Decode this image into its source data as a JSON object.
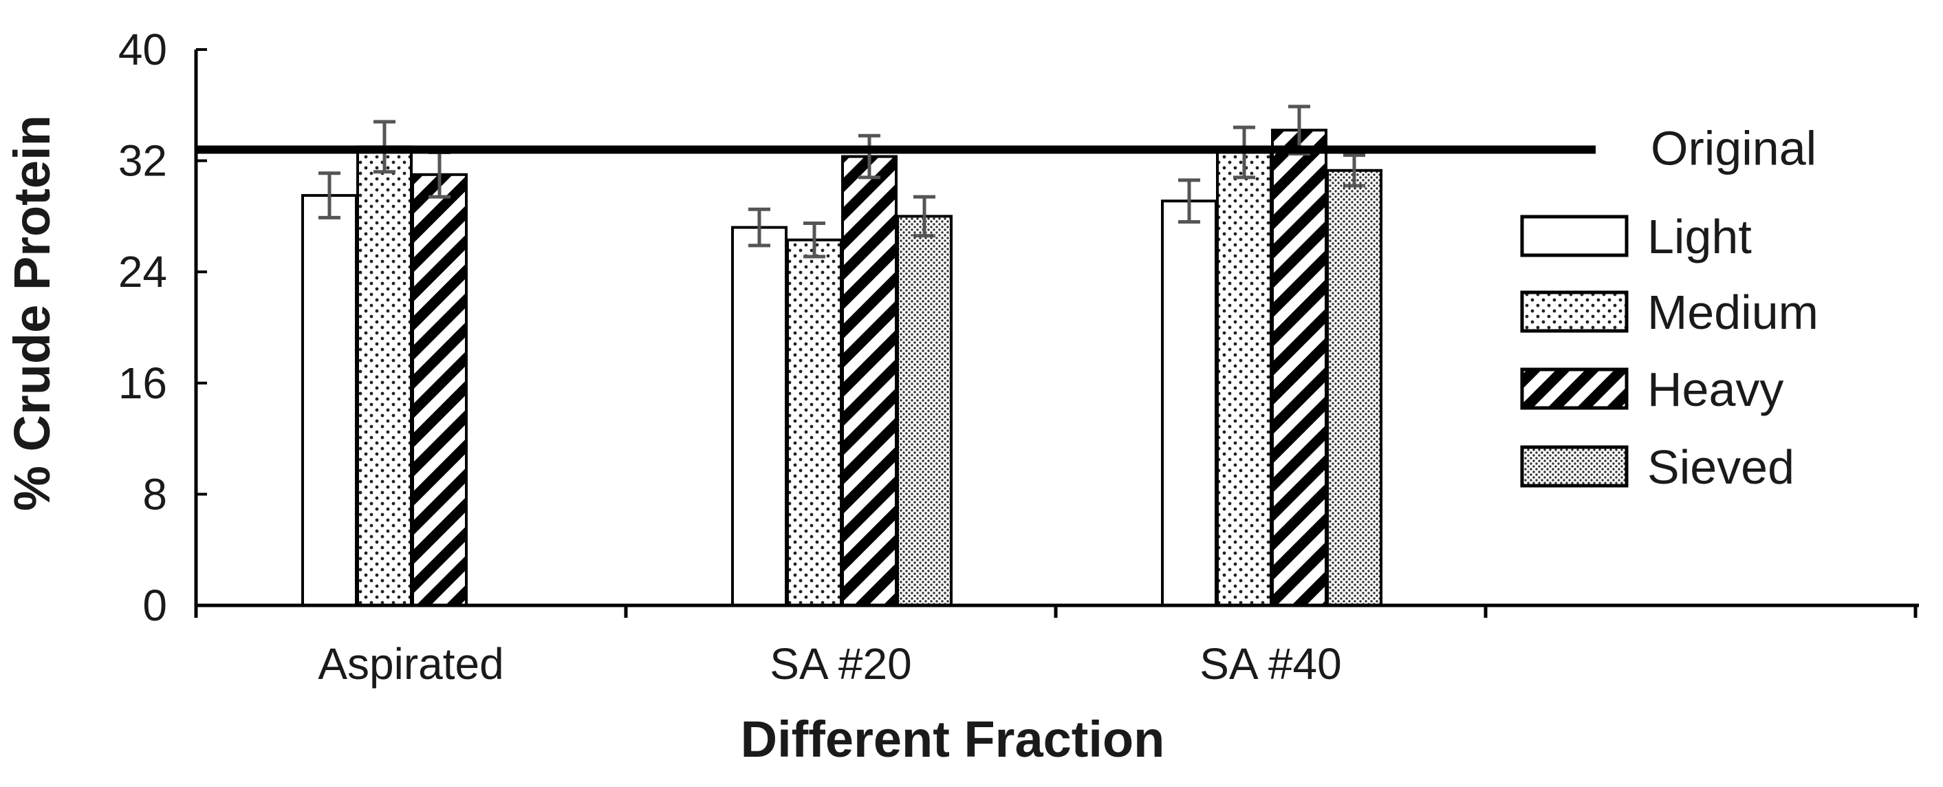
{
  "chart_data": {
    "type": "bar",
    "title": "",
    "xlabel": "Different Fraction",
    "ylabel": "% Crude Protein",
    "ylim": [
      0,
      40
    ],
    "yticks": [
      "0",
      "8",
      "16",
      "24",
      "32",
      "40"
    ],
    "categories": [
      "Aspirated",
      "SA #20",
      "SA #40",
      ""
    ],
    "series": [
      {
        "name": "Light",
        "pattern": "blank",
        "values": [
          29.5,
          27.2,
          29.1,
          null
        ],
        "errors": [
          1.6,
          1.3,
          1.5,
          null
        ]
      },
      {
        "name": "Medium",
        "pattern": "dots",
        "values": [
          33.0,
          26.3,
          32.6,
          null
        ],
        "errors": [
          1.8,
          1.2,
          1.8,
          null
        ]
      },
      {
        "name": "Heavy",
        "pattern": "stripe",
        "values": [
          31.0,
          32.3,
          34.2,
          null
        ],
        "errors": [
          1.6,
          1.5,
          1.7,
          null
        ]
      },
      {
        "name": "Sieved",
        "pattern": "fine",
        "values": [
          null,
          28.0,
          31.3,
          null
        ],
        "errors": [
          null,
          1.4,
          1.1,
          null
        ]
      }
    ],
    "reference_line": {
      "name": "Original",
      "value": 32.8
    },
    "grid": false,
    "legend_position": "right"
  }
}
